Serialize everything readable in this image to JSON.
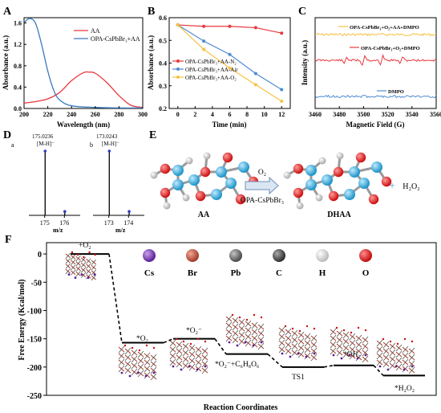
{
  "panels": {
    "A": "A",
    "B": "B",
    "C": "C",
    "D": "D",
    "E": "E",
    "F": "F"
  },
  "chart_data": [
    {
      "panel": "A",
      "type": "line",
      "xlabel": "Wavelength (nm)",
      "ylabel": "Absorbance (a.u.)",
      "xlim": [
        200,
        300
      ],
      "ylim": [
        0.0,
        1.7
      ],
      "xticks": [
        "200",
        "220",
        "240",
        "260",
        "280",
        "300"
      ],
      "yticks": [
        "0.0",
        "0.4",
        "0.8",
        "1.2",
        "1.6"
      ],
      "legend_position": "top-right",
      "series": [
        {
          "name": "AA",
          "color": "#e8383d",
          "x": [
            200,
            210,
            220,
            230,
            240,
            250,
            255,
            260,
            270,
            280,
            290,
            300
          ],
          "y": [
            0.1,
            0.13,
            0.18,
            0.3,
            0.52,
            0.67,
            0.68,
            0.66,
            0.48,
            0.24,
            0.06,
            0.02
          ]
        },
        {
          "name": "OPA-CsPbBr₃+AA",
          "color": "#3a7bbf",
          "x": [
            200,
            203,
            206,
            210,
            215,
            220,
            225,
            230,
            240,
            260,
            280,
            300
          ],
          "y": [
            1.6,
            1.67,
            1.68,
            1.58,
            1.18,
            0.7,
            0.34,
            0.16,
            0.05,
            0.02,
            0.01,
            0.01
          ]
        }
      ]
    },
    {
      "panel": "B",
      "type": "line",
      "xlabel": "Time (min)",
      "ylabel": "Absorbance (a.u.)",
      "xlim": [
        0,
        12
      ],
      "ylim": [
        0.2,
        0.6
      ],
      "xticks": [
        "0",
        "2",
        "4",
        "6",
        "8",
        "10",
        "12"
      ],
      "yticks": [
        "0.2",
        "0.3",
        "0.4",
        "0.5",
        "0.6"
      ],
      "legend_position": "center",
      "series": [
        {
          "name": "OPA-CsPbBr₃+AA-N₂",
          "color": "#e8383d",
          "marker": "circle",
          "x": [
            0,
            3,
            6,
            9,
            12
          ],
          "y": [
            0.568,
            0.562,
            0.562,
            0.556,
            0.532
          ]
        },
        {
          "name": "OPA-CsPbBr₃+AA-Air",
          "color": "#4f8ad3",
          "marker": "circle",
          "x": [
            0,
            3,
            6,
            9,
            12
          ],
          "y": [
            0.568,
            0.497,
            0.438,
            0.354,
            0.283
          ]
        },
        {
          "name": "OPA-CsPbBr₃+AA-O₂",
          "color": "#f5c242",
          "marker": "circle",
          "x": [
            0,
            3,
            6,
            9,
            12
          ],
          "y": [
            0.568,
            0.46,
            0.378,
            0.305,
            0.232
          ]
        }
      ]
    },
    {
      "panel": "C",
      "type": "line",
      "xlabel": "Magnetic Field (G)",
      "ylabel": "Intensity (a.u.)",
      "xlim": [
        3460,
        3560
      ],
      "xticks": [
        "3460",
        "3480",
        "3500",
        "3520",
        "3540",
        "3560"
      ],
      "series": [
        {
          "name": "OPA-CsPbBr₃+O₂+AA+DMPO",
          "color": "#f5c242"
        },
        {
          "name": "OPA-CsPbBr₃+O₂+DMPO",
          "color": "#e8383d",
          "peaks": [
            3485,
            3500,
            3515,
            3531
          ]
        },
        {
          "name": "DMPO",
          "color": "#4f8ad3"
        }
      ]
    },
    {
      "panel": "D",
      "type": "bar",
      "subplots": [
        {
          "tag": "a",
          "peak_label": "175.0236",
          "ion_label": "[M-H]⁻",
          "x": [
            175.0236,
            176.02
          ],
          "y": [
            100,
            6
          ],
          "xticks": [
            "175",
            "176"
          ],
          "xlabel": "m/z"
        },
        {
          "tag": "b",
          "peak_label": "173.0243",
          "ion_label": "[M-H]⁻",
          "x": [
            173.0243,
            174.03
          ],
          "y": [
            100,
            6
          ],
          "xticks": [
            "173",
            "174"
          ],
          "xlabel": "m/z"
        }
      ]
    },
    {
      "panel": "F",
      "type": "line",
      "ylabel": "Free Energy (Kcal/mol)",
      "xlabel": "Reaction Coordinates",
      "ylim": [
        -250,
        20
      ],
      "yticks": [
        "0",
        "-50",
        "-100",
        "-150",
        "-200",
        "-250"
      ],
      "states": [
        {
          "label": "+O₂",
          "energy": 0
        },
        {
          "label": "*O₂",
          "energy": -157
        },
        {
          "label": "*O₂⁻",
          "energy": -150
        },
        {
          "label": "*O₂⁻+C₆H₈O₆",
          "energy": -177
        },
        {
          "label": "TS1",
          "energy": -200
        },
        {
          "label": "*OH₂",
          "energy": -197
        },
        {
          "label": "*H₂O₂",
          "energy": -215
        }
      ]
    }
  ],
  "scheme": {
    "reactant": "AA",
    "product": "DHAA",
    "arrow_top": "O₂",
    "arrow_bottom": "OPA-CsPbBr₃",
    "plus": "+",
    "byproduct": "H₂O₂"
  },
  "atom_legend": [
    {
      "symbol": "Cs",
      "color": "#7b3fb3"
    },
    {
      "symbol": "Br",
      "color": "#c0503c"
    },
    {
      "symbol": "Pb",
      "color": "#6e6e6e"
    },
    {
      "symbol": "C",
      "color": "#555555"
    },
    {
      "symbol": "H",
      "color": "#e6e6e6"
    },
    {
      "symbol": "O",
      "color": "#e01818"
    }
  ]
}
